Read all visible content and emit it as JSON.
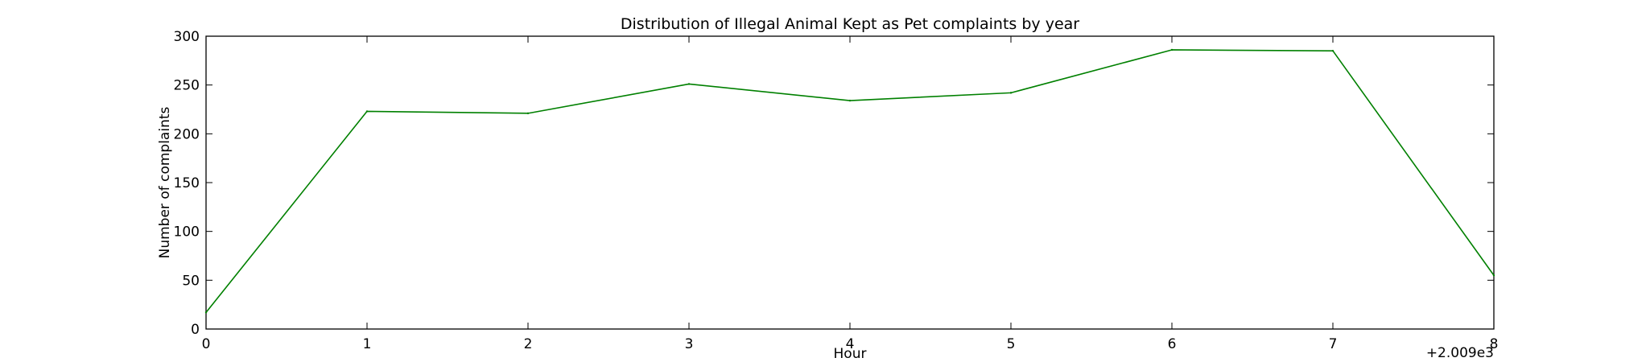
{
  "chart_data": {
    "type": "line",
    "title": "Distribution of  Illegal Animal Kept as Pet complaints by year",
    "xlabel": "Hour",
    "ylabel": "Number of complaints",
    "x_offset_label": "+2.009e3",
    "x": [
      0,
      1,
      2,
      3,
      4,
      5,
      6,
      7,
      8
    ],
    "xlim": [
      0,
      8
    ],
    "ylim": [
      0,
      300
    ],
    "x_ticks": [
      "0",
      "1",
      "2",
      "3",
      "4",
      "5",
      "6",
      "7",
      "8"
    ],
    "y_ticks": [
      "0",
      "50",
      "100",
      "150",
      "200",
      "250",
      "300"
    ],
    "grid": false,
    "series": [
      {
        "values": [
          17,
          223,
          221,
          251,
          234,
          242,
          286,
          285,
          55
        ],
        "color": "#008000"
      }
    ]
  }
}
